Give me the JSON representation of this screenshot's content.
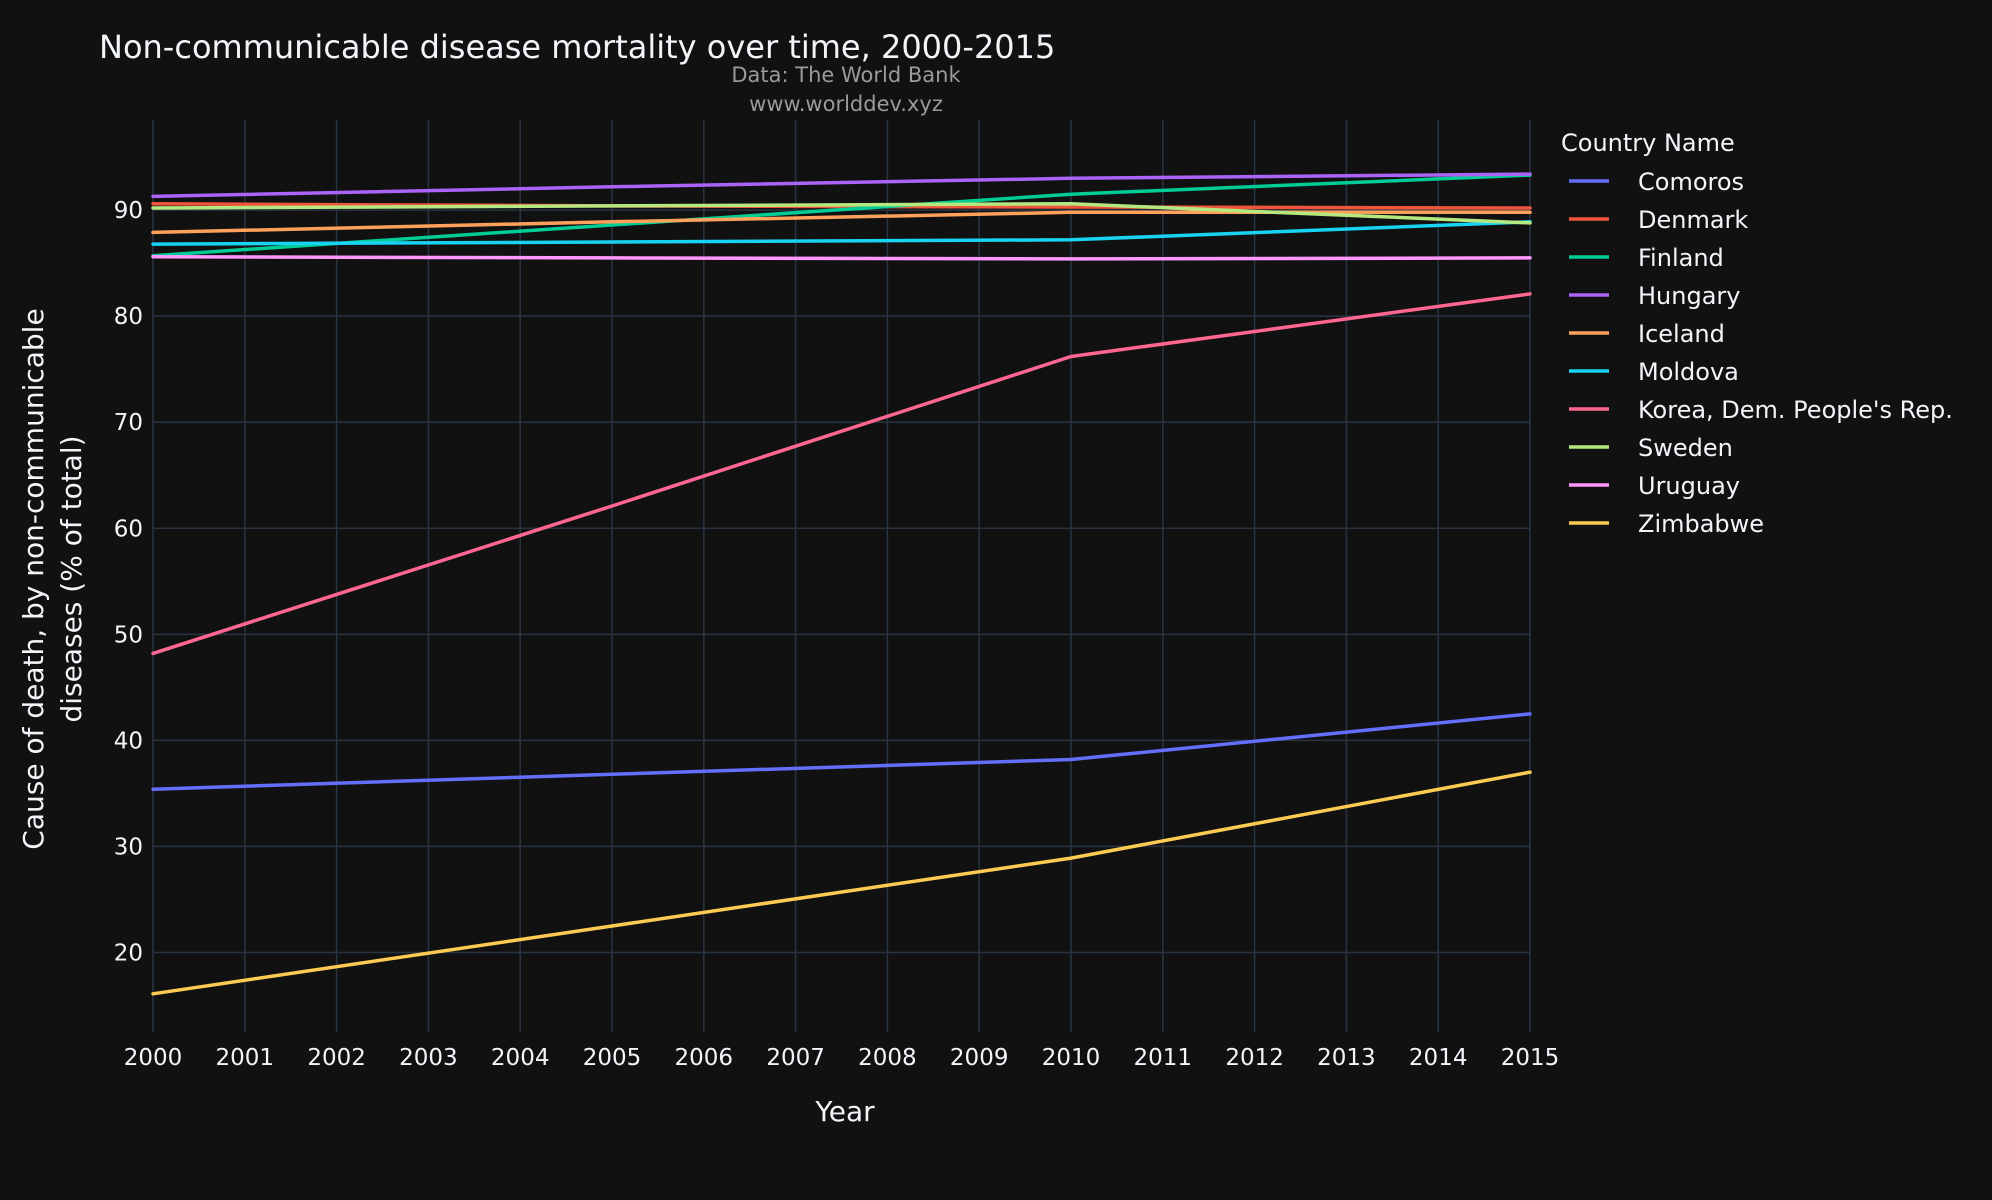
{
  "chart_data": {
    "type": "line",
    "title": "Non-communicable disease mortality over time, 2000-2015",
    "subtitle_lines": [
      "Data: The World Bank",
      "www.worlddev.xyz"
    ],
    "xlabel": "Year",
    "ylabel_lines": [
      "Cause of death, by non-communicable",
      "diseases (% of total)"
    ],
    "legend_title": "Country Name",
    "legend_position": "right",
    "grid": true,
    "xlim": [
      2000,
      2015
    ],
    "ylim": [
      12.5,
      98.5
    ],
    "x_ticks": [
      2000,
      2001,
      2002,
      2003,
      2004,
      2005,
      2006,
      2007,
      2008,
      2009,
      2010,
      2011,
      2012,
      2013,
      2014,
      2015
    ],
    "y_ticks": [
      20,
      30,
      40,
      50,
      60,
      70,
      80,
      90
    ],
    "x": [
      2000,
      2005,
      2010,
      2015
    ],
    "series": [
      {
        "name": "Comoros",
        "color": "#636efa",
        "values": [
          35.4,
          36.8,
          38.2,
          42.5
        ]
      },
      {
        "name": "Denmark",
        "color": "#ef553b",
        "values": [
          90.6,
          90.4,
          90.3,
          90.2
        ]
      },
      {
        "name": "Finland",
        "color": "#00cc96",
        "values": [
          85.7,
          88.6,
          91.5,
          93.3
        ]
      },
      {
        "name": "Hungary",
        "color": "#ab63fa",
        "values": [
          91.3,
          92.2,
          93.0,
          93.4
        ]
      },
      {
        "name": "Iceland",
        "color": "#ffa15a",
        "values": [
          87.9,
          88.9,
          89.8,
          89.8
        ]
      },
      {
        "name": "Moldova",
        "color": "#19d3f3",
        "values": [
          86.8,
          87.0,
          87.2,
          88.9
        ]
      },
      {
        "name": "Korea, Dem. People's Rep.",
        "color": "#ff6692",
        "values": [
          48.2,
          62.1,
          76.2,
          82.1
        ]
      },
      {
        "name": "Sweden",
        "color": "#b6e880",
        "values": [
          90.2,
          90.4,
          90.6,
          88.8
        ]
      },
      {
        "name": "Uruguay",
        "color": "#ff97ff",
        "values": [
          85.6,
          85.5,
          85.4,
          85.5
        ]
      },
      {
        "name": "Zimbabwe",
        "color": "#fecb52",
        "values": [
          16.1,
          22.5,
          28.9,
          37.0
        ]
      }
    ]
  }
}
